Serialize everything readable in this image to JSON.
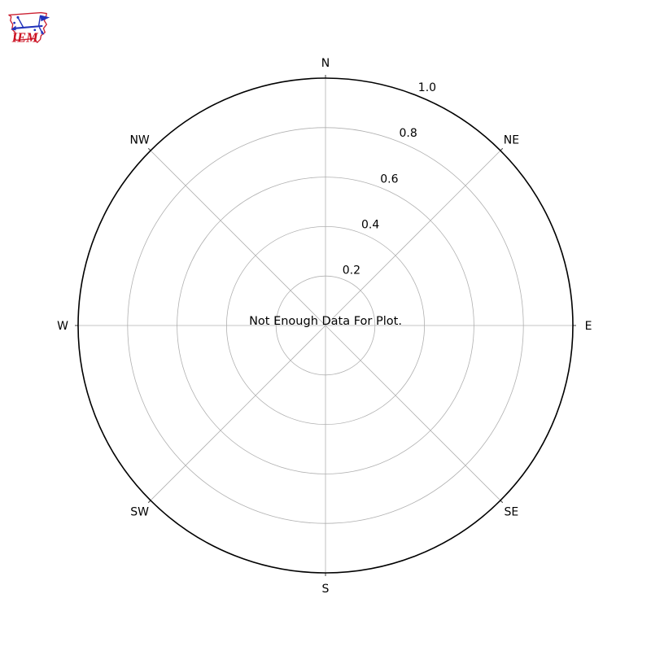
{
  "page": {
    "background": "#ffffff"
  },
  "logo": {
    "text": "IEM",
    "outline_color": "#cc2233",
    "instrument_color": "#2233bb",
    "text_color": "#cc1122"
  },
  "chart_data": {
    "type": "polar",
    "subtype": "wind-rose-empty",
    "status_message": "Not Enough Data For Plot.",
    "direction_labels": [
      "N",
      "NE",
      "E",
      "SE",
      "S",
      "SW",
      "W",
      "NW"
    ],
    "direction_angles_deg": [
      0,
      45,
      90,
      135,
      180,
      225,
      270,
      315
    ],
    "radial_tick_labels": [
      "0.2",
      "0.4",
      "0.6",
      "0.8",
      "1.0"
    ],
    "radial_tick_values": [
      0.2,
      0.4,
      0.6,
      0.8,
      1.0
    ],
    "radial_label_angle_deg": 22.5,
    "rlim": [
      0,
      1.0
    ],
    "grid": true,
    "series": [],
    "grid_color": "#b0b0b0",
    "tick_mark_color": "#444444",
    "axis_outline_color": "#000000",
    "text_color": "#000000"
  }
}
